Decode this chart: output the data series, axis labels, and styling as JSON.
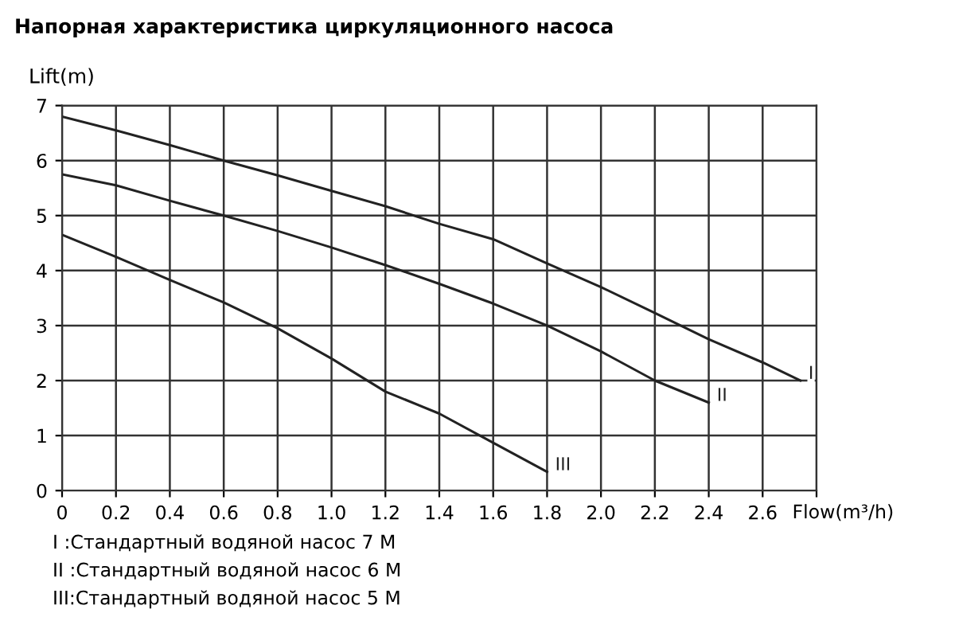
{
  "chart_data": {
    "type": "line",
    "title": "Напорная характеристика циркуляционного насоса",
    "xlabel": "Flow(m³/h)",
    "ylabel": "Lift(m)",
    "xlim": [
      0,
      2.8
    ],
    "ylim": [
      0,
      7
    ],
    "xticks": [
      0,
      0.2,
      0.4,
      0.6,
      0.8,
      {
        "value": 1.0,
        "label": "1.0"
      },
      1.2,
      1.4,
      1.6,
      1.8,
      {
        "value": 2.0,
        "label": "2.0"
      },
      2.2,
      2.4,
      2.6,
      {
        "value": 2.8,
        "label": null
      }
    ],
    "yticks": [
      0,
      1,
      2,
      3,
      4,
      5,
      6,
      7
    ],
    "grid": true,
    "legend": false,
    "marker": "none",
    "line_style": "solid",
    "series": [
      {
        "name": "I",
        "color": "#222222",
        "x": [
          0,
          0.2,
          0.4,
          0.6,
          0.8,
          1.0,
          1.2,
          1.4,
          1.6,
          1.8,
          2.0,
          2.2,
          2.4,
          2.6,
          2.74
        ],
        "values": [
          6.8,
          6.55,
          6.28,
          6.0,
          5.73,
          5.45,
          5.17,
          4.85,
          4.57,
          4.13,
          3.7,
          3.23,
          2.75,
          2.33,
          2.0
        ]
      },
      {
        "name": "II",
        "color": "#222222",
        "x": [
          0,
          0.2,
          0.4,
          0.6,
          0.8,
          1.0,
          1.2,
          1.4,
          1.6,
          1.8,
          2.0,
          2.2,
          2.4
        ],
        "values": [
          5.75,
          5.55,
          5.27,
          5.0,
          4.72,
          4.42,
          4.1,
          3.76,
          3.4,
          3.0,
          2.53,
          2.0,
          1.6
        ]
      },
      {
        "name": "III",
        "color": "#222222",
        "x": [
          0,
          0.2,
          0.4,
          0.6,
          0.8,
          1.0,
          1.2,
          1.4,
          1.6,
          1.8
        ],
        "values": [
          4.65,
          4.25,
          3.83,
          3.42,
          2.95,
          2.4,
          1.8,
          1.4,
          0.87,
          0.34
        ]
      }
    ],
    "annotations": [
      "I :Стандартный водяной насос 7 M",
      "II :Стандартный водяной насос 6 M",
      "III:Стандартный водяной насос 5 M"
    ]
  }
}
